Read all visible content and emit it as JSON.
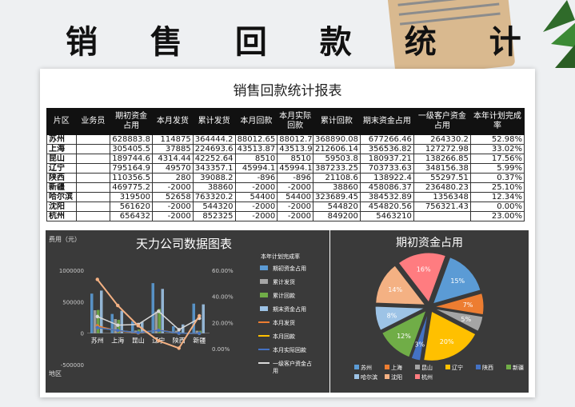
{
  "page": {
    "banner_title": "销 售 回 款 统 计 表"
  },
  "report": {
    "title": "销售回款统计报表"
  },
  "table": {
    "headers": [
      "片区",
      "业务员",
      "期初资金占用",
      "本月发货",
      "累计发货",
      "本月回款",
      "本月实际回款",
      "累计回款",
      "期末资金占用",
      "一级客户资金占用",
      "本年计划完成率"
    ],
    "rows": [
      [
        "苏州",
        "",
        "628883.8",
        "114875",
        "364444.2",
        "88012.65",
        "88012.7",
        "368890.08",
        "677266.46",
        "264330.2",
        "52.98%"
      ],
      [
        "上海",
        "",
        "305405.5",
        "37885",
        "224693.6",
        "43513.87",
        "43513.9",
        "212606.14",
        "356536.82",
        "127272.98",
        "33.02%"
      ],
      [
        "昆山",
        "",
        "189744.6",
        "4314.44",
        "42252.64",
        "8510",
        "8510",
        "59503.8",
        "180937.21",
        "138266.85",
        "17.56%"
      ],
      [
        "辽宁",
        "",
        "795164.9",
        "49570",
        "343357.1",
        "45994.1",
        "45994.1",
        "387233.25",
        "703733.63",
        "348156.38",
        "5.99%"
      ],
      [
        "陕西",
        "",
        "110356.5",
        "280",
        "39088.2",
        "-896",
        "-896",
        "21108.6",
        "138922.4",
        "55297.51",
        "0.37%"
      ],
      [
        "新疆",
        "",
        "469775.2",
        "-2000",
        "38860",
        "-2000",
        "-2000",
        "38860",
        "458086.37",
        "236480.23",
        "25.10%"
      ],
      [
        "哈尔滨",
        "",
        "319500",
        "52658",
        "763320.2",
        "54400",
        "54400",
        "323689.45",
        "384532.89",
        "1356348",
        "12.34%"
      ],
      [
        "沈阳",
        "",
        "561620",
        "-2000",
        "544320",
        "-2000",
        "-2000",
        "544820",
        "454820.56",
        "756321.43",
        "0.00%"
      ],
      [
        "杭州",
        "",
        "656432",
        "-2000",
        "852325",
        "-2000",
        "-2000",
        "849200",
        "5463210",
        "",
        "23.00%"
      ]
    ]
  },
  "chart1": {
    "title": "天力公司数据图表",
    "ylabel": "费用（元）",
    "xlabel": "地区",
    "legend_title": "本年计划完成率",
    "left_ticks": [
      "1000000",
      "500000",
      "0",
      "-500000"
    ],
    "right_ticks": [
      "60.00%",
      "40.00%",
      "20.00%",
      "0.00%"
    ],
    "legend": [
      "期初资金占用",
      "累计发货",
      "累计回款",
      "期末资金占用",
      "本月发货",
      "本月回款",
      "本月实际回款",
      "一级客户资金占用"
    ],
    "colors": {
      "bar1": "#5b9bd5",
      "bar2": "#a5a5a5",
      "bar3": "#70ad47",
      "bar4": "#9dc3e6",
      "line1": "#ed7d31",
      "line2": "#ffc000",
      "line3": "#4472c4",
      "line4": "#d9d9d9",
      "rate": "#f4b183"
    }
  },
  "chart_data": [
    {
      "type": "bar",
      "title": "天力公司数据图表",
      "ylabel": "费用（元）",
      "xlabel": "地区",
      "ylim": [
        -500000,
        1000000
      ],
      "y2lim": [
        0,
        0.6
      ],
      "categories": [
        "苏州",
        "上海",
        "昆山",
        "辽宁",
        "陕西",
        "新疆"
      ],
      "series": [
        {
          "name": "期初资金占用",
          "kind": "bar",
          "values": [
            628883.8,
            305405.5,
            189744.6,
            795164.9,
            110356.5,
            469775.2
          ]
        },
        {
          "name": "累计发货",
          "kind": "bar",
          "values": [
            364444.2,
            224693.6,
            42252.64,
            343357.1,
            39088.2,
            38860
          ]
        },
        {
          "name": "累计回款",
          "kind": "bar",
          "values": [
            368890.08,
            212606.14,
            59503.8,
            387233.25,
            21108.6,
            38860
          ]
        },
        {
          "name": "期末资金占用",
          "kind": "bar",
          "values": [
            677266.46,
            356536.82,
            180937.21,
            703733.63,
            138922.4,
            458086.37
          ]
        },
        {
          "name": "本月发货",
          "kind": "line",
          "values": [
            114875,
            37885,
            4314.44,
            49570,
            280,
            -2000
          ]
        },
        {
          "name": "本月回款",
          "kind": "line",
          "values": [
            88012.65,
            43513.87,
            8510,
            45994.1,
            -896,
            -2000
          ]
        },
        {
          "name": "本月实际回款",
          "kind": "line",
          "values": [
            88012.7,
            43513.9,
            8510,
            45994.1,
            -896,
            -2000
          ]
        },
        {
          "name": "一级客户资金占用",
          "kind": "line",
          "values": [
            264330.2,
            127272.98,
            138266.85,
            348156.38,
            55297.51,
            236480.23
          ]
        },
        {
          "name": "本年计划完成率",
          "kind": "line",
          "axis": "right",
          "values": [
            0.5298,
            0.3302,
            0.1756,
            0.0599,
            0.0037,
            0.251
          ]
        }
      ]
    },
    {
      "type": "pie",
      "title": "期初资金占用",
      "labels": [
        "苏州",
        "上海",
        "昆山",
        "辽宁",
        "陕西",
        "新疆",
        "哈尔滨",
        "沈阳",
        "杭州"
      ],
      "values": [
        15,
        7,
        5,
        20,
        3,
        12,
        8,
        14,
        16
      ],
      "colors": [
        "#5b9bd5",
        "#ed7d31",
        "#a5a5a5",
        "#ffc000",
        "#4472c4",
        "#70ad47",
        "#9dc3e6",
        "#f4b183",
        "#ff7c80"
      ]
    }
  ]
}
